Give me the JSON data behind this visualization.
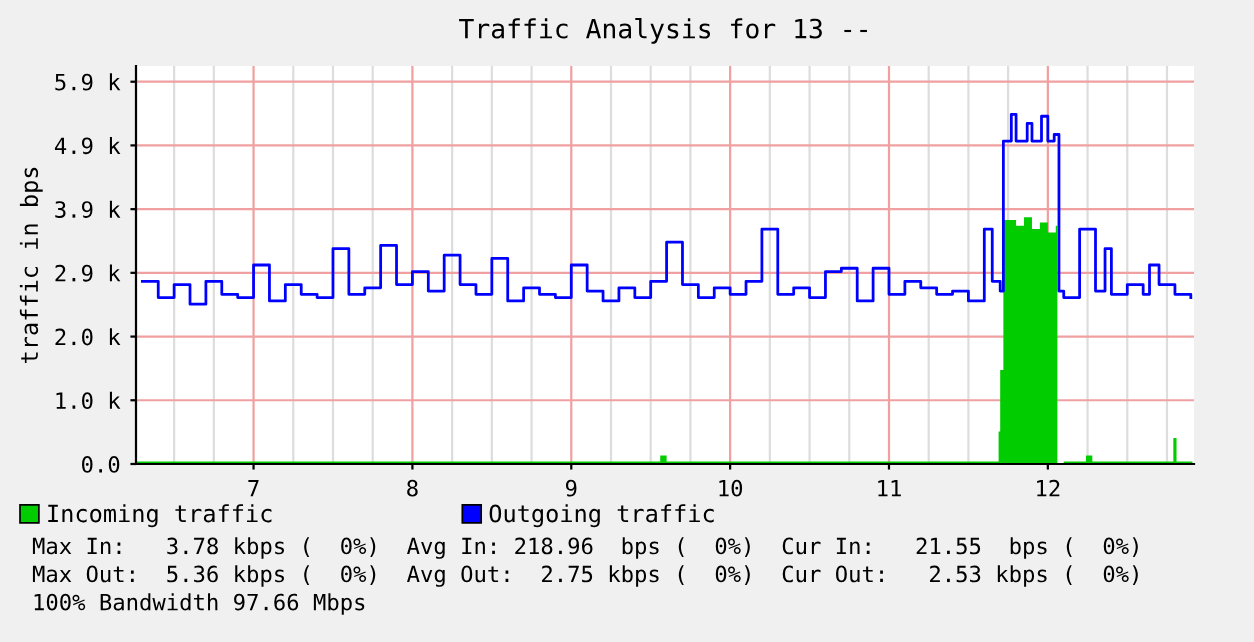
{
  "chart_data": {
    "type": "area",
    "title": "Traffic Analysis for 13 --",
    "ylabel": "traffic in bps",
    "xlim": [
      6.26,
      12.92
    ],
    "xticks": [
      7,
      8,
      9,
      10,
      11,
      12
    ],
    "ylim": [
      0,
      6100
    ],
    "yticks": [
      {
        "value": 0,
        "label": "0.0"
      },
      {
        "value": 977,
        "label": "1.0 k"
      },
      {
        "value": 1953,
        "label": "2.0 k"
      },
      {
        "value": 2930,
        "label": "2.9 k"
      },
      {
        "value": 3906,
        "label": "3.9 k"
      },
      {
        "value": 4883,
        "label": "4.9 k"
      },
      {
        "value": 5859,
        "label": "5.9 k"
      }
    ],
    "grid": true,
    "legend": "bottom",
    "series": [
      {
        "name": "Incoming traffic",
        "color": "#00cc00",
        "x": [
          6.26,
          9.5,
          9.56,
          9.6,
          11.68,
          11.69,
          11.7,
          11.72,
          11.8,
          11.85,
          11.9,
          11.95,
          12.0,
          12.05,
          12.06,
          12.1,
          12.24,
          12.28,
          12.78,
          12.79,
          12.81,
          12.91
        ],
        "values": [
          40,
          40,
          130,
          40,
          40,
          500,
          1440,
          3740,
          3650,
          3780,
          3600,
          3700,
          3550,
          3650,
          0,
          40,
          130,
          40,
          40,
          400,
          40,
          40
        ]
      },
      {
        "name": "Outgoing traffic",
        "type": "step",
        "color": "#0000ff",
        "x": [
          6.3,
          6.4,
          6.5,
          6.6,
          6.7,
          6.8,
          6.9,
          7.0,
          7.1,
          7.2,
          7.3,
          7.4,
          7.5,
          7.6,
          7.7,
          7.8,
          7.9,
          8.0,
          8.1,
          8.2,
          8.3,
          8.4,
          8.5,
          8.6,
          8.7,
          8.8,
          8.9,
          9.0,
          9.1,
          9.2,
          9.3,
          9.4,
          9.5,
          9.6,
          9.7,
          9.8,
          9.9,
          10.0,
          10.1,
          10.2,
          10.3,
          10.4,
          10.5,
          10.6,
          10.7,
          10.8,
          10.9,
          11.0,
          11.1,
          11.2,
          11.3,
          11.4,
          11.5,
          11.6,
          11.65,
          11.7,
          11.72,
          11.77,
          11.8,
          11.87,
          11.9,
          11.96,
          12.0,
          12.04,
          12.07,
          12.1,
          12.2,
          12.3,
          12.36,
          12.4,
          12.5,
          12.6,
          12.64,
          12.7,
          12.8,
          12.9
        ],
        "values": [
          2800,
          2550,
          2750,
          2450,
          2800,
          2600,
          2550,
          3050,
          2500,
          2750,
          2600,
          2550,
          3300,
          2600,
          2700,
          3350,
          2750,
          2950,
          2650,
          3200,
          2750,
          2600,
          3150,
          2500,
          2700,
          2600,
          2550,
          3050,
          2650,
          2500,
          2700,
          2550,
          2800,
          3400,
          2750,
          2550,
          2700,
          2600,
          2800,
          3600,
          2600,
          2700,
          2550,
          2950,
          3000,
          2500,
          3000,
          2600,
          2800,
          2700,
          2600,
          2650,
          2500,
          3600,
          2800,
          2650,
          4950,
          5360,
          4950,
          5220,
          4950,
          5330,
          4950,
          5050,
          2650,
          2550,
          3600,
          2650,
          3300,
          2600,
          2750,
          2600,
          3050,
          2750,
          2600,
          2550
        ]
      }
    ],
    "annotations": [
      "Max In:   3.78 kbps (  0%)  Avg In: 218.96  bps (  0%)  Cur In:   21.55  bps (  0%)",
      "Max Out:  5.36 kbps (  0%)  Avg Out:  2.75 kbps (  0%)  Cur Out:   2.53 kbps (  0%)",
      "100% Bandwidth 97.66 Mbps"
    ]
  }
}
